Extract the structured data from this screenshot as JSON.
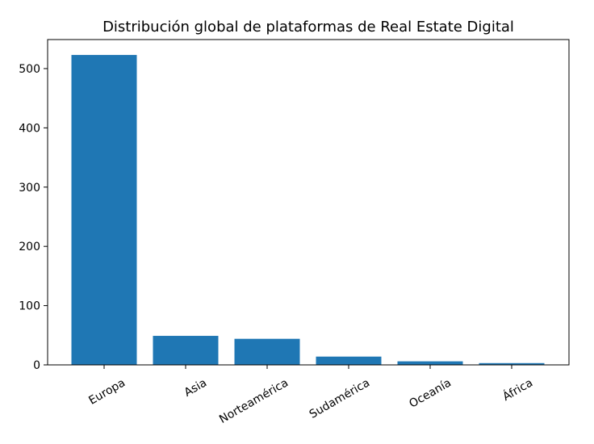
{
  "chart_data": {
    "type": "bar",
    "title": "Distribución global de plataformas de Real Estate Digital",
    "xlabel": "",
    "ylabel": "",
    "categories": [
      "Europa",
      "Asia",
      "Norteamérica",
      "Sudamérica",
      "Oceanía",
      "África"
    ],
    "values": [
      523,
      49,
      44,
      14,
      6,
      3
    ],
    "ylim": [
      0,
      549
    ],
    "yticks": [
      0,
      100,
      200,
      300,
      400,
      500
    ],
    "grid": false,
    "bar_color": "#1f77b4",
    "x_tick_rotation_deg": 30
  }
}
